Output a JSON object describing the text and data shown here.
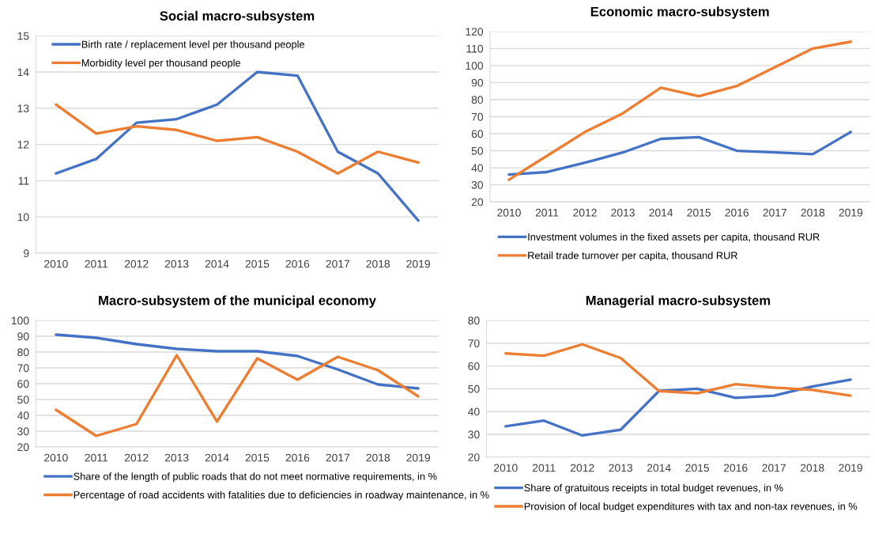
{
  "chart_data": [
    {
      "type": "line",
      "title": "Social macro-subsystem",
      "categories": [
        "2010",
        "2011",
        "2012",
        "2013",
        "2014",
        "2015",
        "2016",
        "2017",
        "2018",
        "2019"
      ],
      "ylim": [
        9,
        15
      ],
      "yticks": [
        9,
        10,
        11,
        12,
        13,
        14,
        15
      ],
      "grid": "y",
      "legend": "top left",
      "series": [
        {
          "name": "Birth rate / replacement level per thousand people",
          "color": "#4472c4",
          "values": [
            11.2,
            11.6,
            12.6,
            12.7,
            13.1,
            14.0,
            13.9,
            11.8,
            11.2,
            9.9
          ]
        },
        {
          "name": "Morbidity level per thousand people",
          "color": "#ed7d31",
          "values": [
            13.1,
            12.3,
            12.5,
            12.4,
            12.1,
            12.2,
            11.8,
            11.2,
            11.8,
            11.5
          ]
        }
      ]
    },
    {
      "type": "line",
      "title": "Economic macro-subsystem",
      "categories": [
        "2010",
        "2011",
        "2012",
        "2013",
        "2014",
        "2015",
        "2016",
        "2017",
        "2018",
        "2019"
      ],
      "ylim": [
        20,
        120
      ],
      "yticks": [
        20,
        30,
        40,
        50,
        60,
        70,
        80,
        90,
        100,
        110,
        120
      ],
      "grid": "y",
      "legend": "bottom",
      "series": [
        {
          "name": "Investment volumes in the fixed assets per capita, thousand RUR",
          "color": "#4472c4",
          "values": [
            36,
            37.5,
            43,
            49,
            57,
            58,
            50,
            49,
            48,
            61
          ]
        },
        {
          "name": "Retail trade turnover per capita, thousand RUR",
          "color": "#ed7d31",
          "values": [
            33,
            47,
            61,
            72,
            87,
            82,
            88,
            99,
            110,
            114
          ]
        }
      ]
    },
    {
      "type": "line",
      "title": "Macro-subsystem of the municipal economy",
      "categories": [
        "2010",
        "2011",
        "2012",
        "2013",
        "2014",
        "2015",
        "2016",
        "2017",
        "2018",
        "2019"
      ],
      "ylim": [
        20,
        100
      ],
      "yticks": [
        20,
        30,
        40,
        50,
        60,
        70,
        80,
        90,
        100
      ],
      "grid": "y",
      "legend": "bottom",
      "series": [
        {
          "name": "Share of the length of public roads that do not meet normative requirements, in %",
          "color": "#4472c4",
          "values": [
            91,
            89,
            85,
            82,
            80.5,
            80.5,
            77.5,
            69,
            59.5,
            57
          ]
        },
        {
          "name": "Percentage of road accidents with fatalities due to deficiencies in roadway maintenance, in %",
          "color": "#ed7d31",
          "values": [
            43.5,
            27,
            34.5,
            78,
            36,
            76,
            62.5,
            77,
            68.5,
            52
          ]
        }
      ]
    },
    {
      "type": "line",
      "title": "Managerial macro-subsystem",
      "categories": [
        "2010",
        "2011",
        "2012",
        "2013",
        "2014",
        "2015",
        "2016",
        "2017",
        "2018",
        "2019"
      ],
      "ylim": [
        20,
        80
      ],
      "yticks": [
        20,
        30,
        40,
        50,
        60,
        70,
        80
      ],
      "grid": "y",
      "legend": "bottom",
      "series": [
        {
          "name": "Share of gratuitous receipts in total budget revenues, in %",
          "color": "#4472c4",
          "values": [
            33.5,
            36,
            29.5,
            32,
            49,
            50,
            46,
            47,
            51,
            54
          ]
        },
        {
          "name": "Provision of local budget expenditures with tax and non-tax revenues, in %",
          "color": "#ed7d31",
          "values": [
            65.5,
            64.5,
            69.5,
            63.5,
            49,
            48,
            52,
            50.5,
            49.5,
            47
          ]
        }
      ]
    }
  ]
}
